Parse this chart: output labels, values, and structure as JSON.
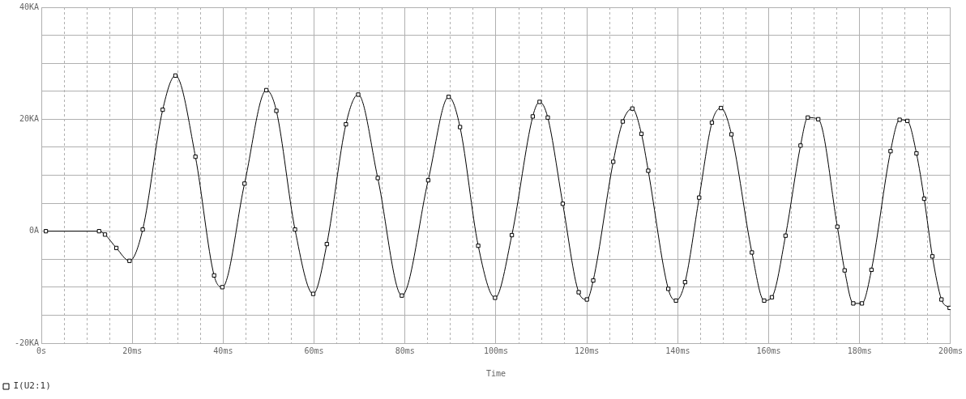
{
  "chart_data": {
    "type": "line",
    "xlabel": "Time",
    "xlim": [
      0,
      200
    ],
    "xticks": [
      {
        "value": 0,
        "label": "0s"
      },
      {
        "value": 5,
        "label": null
      },
      {
        "value": 10,
        "label": null
      },
      {
        "value": 15,
        "label": null
      },
      {
        "value": 20,
        "label": "20ms"
      },
      {
        "value": 25,
        "label": null
      },
      {
        "value": 30,
        "label": null
      },
      {
        "value": 35,
        "label": null
      },
      {
        "value": 40,
        "label": "40ms"
      },
      {
        "value": 45,
        "label": null
      },
      {
        "value": 50,
        "label": null
      },
      {
        "value": 55,
        "label": null
      },
      {
        "value": 60,
        "label": "60ms"
      },
      {
        "value": 65,
        "label": null
      },
      {
        "value": 70,
        "label": null
      },
      {
        "value": 75,
        "label": null
      },
      {
        "value": 80,
        "label": "80ms"
      },
      {
        "value": 85,
        "label": null
      },
      {
        "value": 90,
        "label": null
      },
      {
        "value": 95,
        "label": null
      },
      {
        "value": 100,
        "label": "100ms"
      },
      {
        "value": 105,
        "label": null
      },
      {
        "value": 110,
        "label": null
      },
      {
        "value": 115,
        "label": null
      },
      {
        "value": 120,
        "label": "120ms"
      },
      {
        "value": 125,
        "label": null
      },
      {
        "value": 130,
        "label": null
      },
      {
        "value": 135,
        "label": null
      },
      {
        "value": 140,
        "label": "140ms"
      },
      {
        "value": 145,
        "label": null
      },
      {
        "value": 150,
        "label": null
      },
      {
        "value": 155,
        "label": null
      },
      {
        "value": 160,
        "label": "160ms"
      },
      {
        "value": 165,
        "label": null
      },
      {
        "value": 170,
        "label": null
      },
      {
        "value": 175,
        "label": null
      },
      {
        "value": 180,
        "label": "180ms"
      },
      {
        "value": 185,
        "label": null
      },
      {
        "value": 190,
        "label": null
      },
      {
        "value": 195,
        "label": null
      },
      {
        "value": 200,
        "label": "200ms"
      }
    ],
    "ylim": [
      -20,
      40
    ],
    "yticks": [
      {
        "value": -20,
        "label": "-20KA"
      },
      {
        "value": -15,
        "label": null
      },
      {
        "value": -10,
        "label": null
      },
      {
        "value": -5,
        "label": null
      },
      {
        "value": 0,
        "label": "0A"
      },
      {
        "value": 5,
        "label": null
      },
      {
        "value": 10,
        "label": null
      },
      {
        "value": 15,
        "label": null
      },
      {
        "value": 20,
        "label": "20KA"
      },
      {
        "value": 25,
        "label": null
      },
      {
        "value": 30,
        "label": null
      },
      {
        "value": 35,
        "label": null
      },
      {
        "value": 40,
        "label": "40KA"
      }
    ],
    "grid": true,
    "legend": "bottom left",
    "marker": "square",
    "line_style": "solid",
    "series": [
      {
        "name": "I(U2:1)",
        "color": "#000000",
        "x": [
          1,
          12.7,
          14,
          16.5,
          19.4,
          22.3,
          26.7,
          29.5,
          33.9,
          38,
          39.8,
          44.7,
          49.5,
          51.7,
          55.8,
          59.8,
          62.8,
          67,
          69.7,
          74,
          79.3,
          85.1,
          89.6,
          92.1,
          96.1,
          99.8,
          103.5,
          108.1,
          109.6,
          111.4,
          114.7,
          118.2,
          120,
          121.4,
          125.8,
          127.9,
          130,
          132,
          133.5,
          137.9,
          139.6,
          141.6,
          144.7,
          147.5,
          149.5,
          151.8,
          156.3,
          159,
          160.7,
          163.7,
          167,
          168.6,
          170.9,
          175.1,
          176.7,
          178.6,
          180.5,
          182.6,
          186.8,
          188.8,
          190.5,
          192.5,
          194.2,
          196,
          198,
          199.8
        ],
        "values": [
          0,
          0,
          -0.6,
          -3,
          -5.3,
          0.3,
          21.7,
          27.8,
          13.3,
          -7.9,
          -10,
          8.5,
          25.2,
          21.5,
          0.3,
          -11.2,
          -2.3,
          19.1,
          24.4,
          9.5,
          -11.5,
          9.1,
          24,
          18.6,
          -2.6,
          -11.9,
          -0.7,
          20.5,
          23.1,
          20.3,
          4.9,
          -10.9,
          -12.2,
          -8.8,
          12.4,
          19.6,
          21.9,
          17.4,
          10.8,
          -10.3,
          -12.4,
          -9.1,
          6,
          19.4,
          22,
          17.3,
          -3.8,
          -12.4,
          -11.8,
          -0.8,
          15.3,
          20.3,
          20,
          0.8,
          -7,
          -12.9,
          -12.9,
          -6.9,
          14.3,
          19.9,
          19.7,
          13.9,
          5.8,
          -4.5,
          -12.2,
          -13.7
        ]
      }
    ]
  }
}
